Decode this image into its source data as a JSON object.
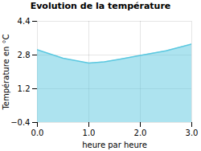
{
  "chart_data": {
    "type": "area",
    "title": "Evolution de la température",
    "xlabel": "heure par heure",
    "ylabel": "Température en °C",
    "x": [
      0,
      0.5,
      1.0,
      1.3,
      1.6,
      2.0,
      2.5,
      3.0
    ],
    "values": [
      3.05,
      2.65,
      2.42,
      2.48,
      2.6,
      2.78,
      3.0,
      3.32
    ],
    "color": "#5bc8e0",
    "xlim": [
      0,
      3
    ],
    "ylim": [
      -0.4,
      4.4
    ],
    "xticks": [
      0,
      1,
      2,
      3
    ],
    "yticks": [
      -0.4,
      1.2,
      2.8,
      4.4
    ],
    "grid": true
  }
}
